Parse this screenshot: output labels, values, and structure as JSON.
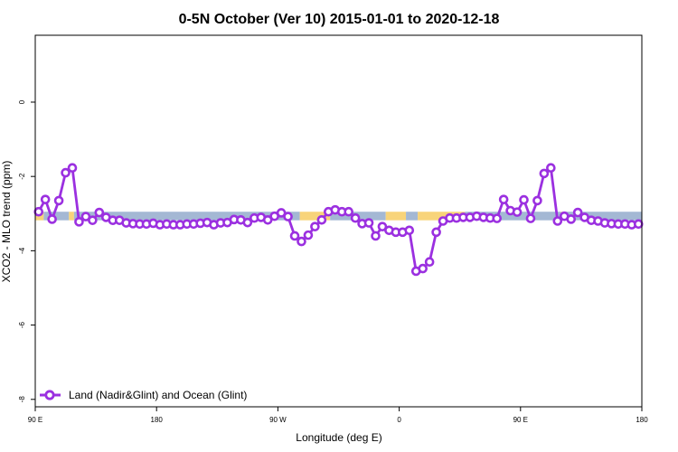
{
  "chart_data": {
    "type": "line",
    "title": "0-5N October (Ver 10)   2015-01-01 to 2020-12-18",
    "xlabel": "Longitude (deg E)",
    "ylabel": "XCO2 - MLO trend (ppm)",
    "xlim": [
      90,
      450
    ],
    "ylim": [
      -8.2,
      1.8
    ],
    "x_ticks": [
      {
        "value": 90,
        "label": "90 E"
      },
      {
        "value": 162,
        "label": "180"
      },
      {
        "value": 234,
        "label": "90 W"
      },
      {
        "value": 306,
        "label": "0"
      },
      {
        "value": 378,
        "label": "90 E"
      },
      {
        "value": 450,
        "label": "180"
      }
    ],
    "y_ticks": [
      {
        "value": 0,
        "label": "0"
      },
      {
        "value": -2,
        "label": "-2"
      },
      {
        "value": -4,
        "label": "-4"
      },
      {
        "value": -6,
        "label": "-6"
      },
      {
        "value": -8,
        "label": "-8"
      }
    ],
    "grid": false,
    "legend": {
      "placement": "bottom-left"
    },
    "surface_band": {
      "y_range": [
        -3.18,
        -2.95
      ],
      "ocean_color": "#a4b8d4",
      "land_color": "#f8d47a",
      "segments": [
        {
          "type": "land",
          "x": [
            90,
            95
          ]
        },
        {
          "type": "ocean",
          "x": [
            95,
            110
          ]
        },
        {
          "type": "land",
          "x": [
            110,
            113
          ]
        },
        {
          "type": "ocean",
          "x": [
            113,
            247
          ]
        },
        {
          "type": "land",
          "x": [
            247,
            265
          ]
        },
        {
          "type": "ocean",
          "x": [
            265,
            298
          ]
        },
        {
          "type": "land",
          "x": [
            298,
            310
          ]
        },
        {
          "type": "ocean",
          "x": [
            310,
            317
          ]
        },
        {
          "type": "land",
          "x": [
            317,
            345
          ]
        },
        {
          "type": "ocean",
          "x": [
            345,
            402
          ]
        },
        {
          "type": "land",
          "x": [
            402,
            405
          ]
        },
        {
          "type": "ocean",
          "x": [
            405,
            450
          ]
        }
      ]
    },
    "series": [
      {
        "name": "Land (Nadir&Glint) and Ocean (Glint)",
        "color": "#9b30e0",
        "x": [
          92,
          96,
          100,
          104,
          108,
          112,
          116,
          120,
          124,
          128,
          132,
          136,
          140,
          144,
          148,
          152,
          156,
          160,
          164,
          168,
          172,
          176,
          180,
          184,
          188,
          192,
          196,
          200,
          204,
          208,
          212,
          216,
          220,
          224,
          228,
          232,
          236,
          240,
          244,
          248,
          252,
          256,
          260,
          264,
          268,
          272,
          276,
          280,
          284,
          288,
          292,
          296,
          300,
          304,
          308,
          312,
          316,
          320,
          324,
          328,
          332,
          336,
          340,
          344,
          348,
          352,
          356,
          360,
          364,
          368,
          372,
          376,
          380,
          384,
          388,
          392,
          396,
          400,
          404,
          408,
          412,
          416,
          420,
          424,
          428,
          432,
          436,
          440,
          444,
          448
        ],
        "y": [
          -2.95,
          -2.62,
          -3.15,
          -2.65,
          -1.9,
          -1.77,
          -3.22,
          -3.08,
          -3.18,
          -2.97,
          -3.1,
          -3.18,
          -3.18,
          -3.25,
          -3.27,
          -3.28,
          -3.28,
          -3.26,
          -3.3,
          -3.28,
          -3.3,
          -3.3,
          -3.28,
          -3.28,
          -3.26,
          -3.24,
          -3.3,
          -3.25,
          -3.24,
          -3.16,
          -3.17,
          -3.24,
          -3.12,
          -3.1,
          -3.17,
          -3.07,
          -2.98,
          -3.08,
          -3.6,
          -3.75,
          -3.58,
          -3.35,
          -3.17,
          -2.95,
          -2.9,
          -2.95,
          -2.95,
          -3.12,
          -3.27,
          -3.25,
          -3.6,
          -3.35,
          -3.45,
          -3.5,
          -3.5,
          -3.45,
          -4.55,
          -4.48,
          -4.3,
          -3.5,
          -3.2,
          -3.12,
          -3.12,
          -3.1,
          -3.1,
          -3.07,
          -3.1,
          -3.12,
          -3.13,
          -2.62,
          -2.92,
          -2.96,
          -2.63,
          -3.13,
          -2.65,
          -1.92,
          -1.77,
          -3.2,
          -3.07,
          -3.15,
          -2.97,
          -3.1,
          -3.18,
          -3.2,
          -3.25,
          -3.27,
          -3.28,
          -3.28,
          -3.3,
          -3.28
        ]
      }
    ]
  }
}
